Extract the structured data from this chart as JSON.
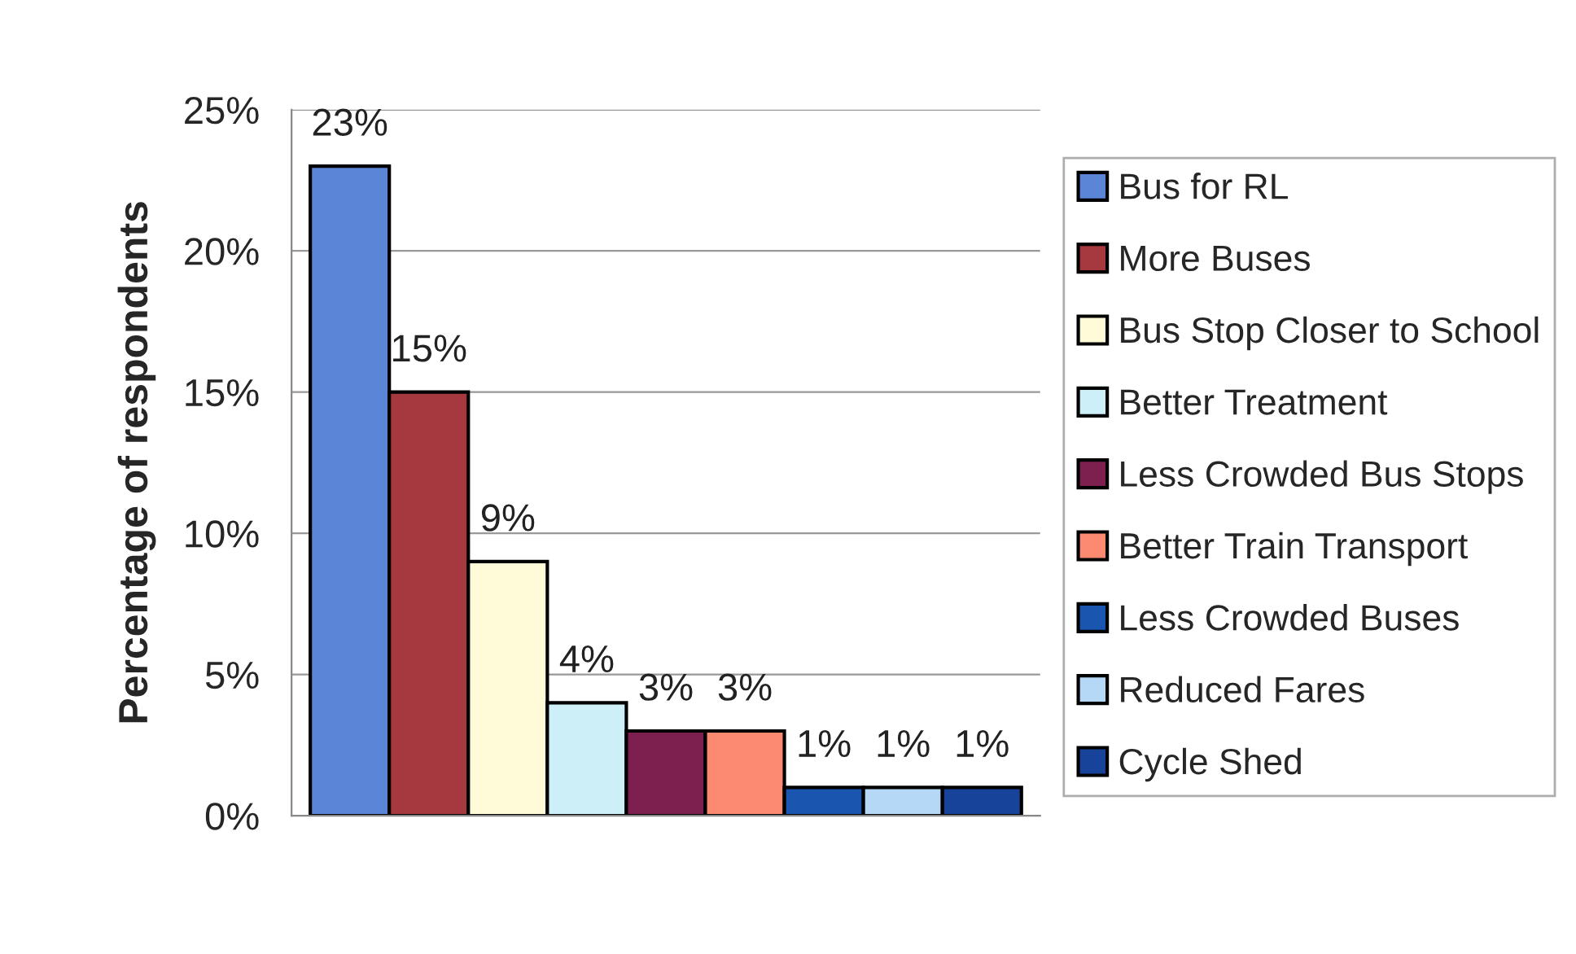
{
  "chart_data": {
    "type": "bar",
    "ylabel": "Percentage of respondents",
    "categories": [
      null
    ],
    "series": [
      {
        "name": "Bus for RL",
        "color": "#5b86d8",
        "values": [
          23
        ],
        "value_labels": [
          "23%"
        ]
      },
      {
        "name": "More Buses",
        "color": "#a5393f",
        "values": [
          15
        ],
        "value_labels": [
          "15%"
        ]
      },
      {
        "name": "Bus Stop Closer to School",
        "color": "#fffbd8",
        "values": [
          9
        ],
        "value_labels": [
          "9%"
        ]
      },
      {
        "name": "Better Treatment",
        "color": "#cdf0f8",
        "values": [
          4
        ],
        "value_labels": [
          "4%"
        ]
      },
      {
        "name": "Less Crowded Bus Stops",
        "color": "#7d2050",
        "values": [
          3
        ],
        "value_labels": [
          "3%"
        ]
      },
      {
        "name": "Better Train Transport",
        "color": "#fb8a70",
        "values": [
          3
        ],
        "value_labels": [
          "3%"
        ]
      },
      {
        "name": "Less Crowded Buses",
        "color": "#1a56b0",
        "values": [
          1
        ],
        "value_labels": [
          "1%"
        ]
      },
      {
        "name": "Reduced Fares",
        "color": "#b4d8f5",
        "values": [
          1
        ],
        "value_labels": [
          "1%"
        ]
      },
      {
        "name": "Cycle Shed",
        "color": "#17449a",
        "values": [
          1
        ],
        "value_labels": [
          "1%"
        ]
      }
    ],
    "ylim": [
      0,
      25
    ],
    "yticks": [
      {
        "value": 0,
        "label": "0%"
      },
      {
        "value": 5,
        "label": "5%"
      },
      {
        "value": 10,
        "label": "10%"
      },
      {
        "value": 15,
        "label": "15%"
      },
      {
        "value": 20,
        "label": "20%"
      },
      {
        "value": 25,
        "label": "25%"
      }
    ],
    "grid": "y",
    "legend": "right",
    "tick_labels": "y"
  }
}
